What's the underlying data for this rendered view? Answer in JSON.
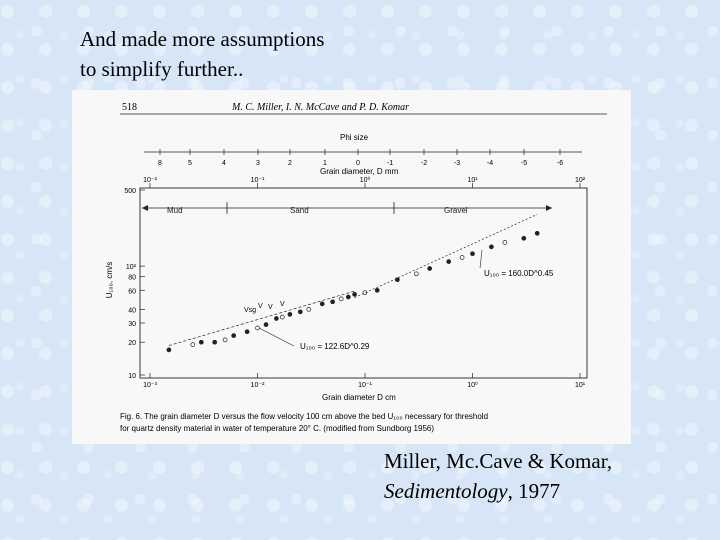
{
  "slide": {
    "title_line1": "And made more assumptions",
    "title_line2": "to simplify further..",
    "citation_line1": "Miller, Mc.Cave & Komar,",
    "citation_journal": "Sedimentology",
    "citation_year": ", 1977"
  },
  "figure": {
    "page_number": "518",
    "running_head": "M. C. Miller, I. N. McCave and P. D. Komar",
    "phi_axis_title": "Phi size",
    "phi_ticks": [
      "8",
      "5",
      "4",
      "3",
      "2",
      "1",
      "0",
      "-1",
      "-2",
      "-3",
      "-4",
      "-5",
      "-6"
    ],
    "top_axis_title": "Grain diameter, D mm",
    "top_ticks": [
      "10⁻²",
      "10⁻¹",
      "10⁰",
      "10¹",
      "10²"
    ],
    "y_label": "U₁₀₀, cm/s",
    "y_ticks": [
      "500",
      "10²",
      "80",
      "60",
      "40",
      "30",
      "20",
      "10"
    ],
    "size_classes": [
      "Mud",
      "Sand",
      "Gravel"
    ],
    "eq_fine": "U₁₀₀ = 122.6D^0.29",
    "eq_coarse": "U₁₀₀ = 160.0D^0.45",
    "point_labels": [
      "Vsg",
      "V",
      "V",
      "V"
    ],
    "bottom_axis_title": "Grain diameter D cm",
    "bottom_ticks": [
      "10⁻³",
      "10⁻²",
      "10⁻¹",
      "10⁰",
      "10¹"
    ],
    "caption_line1": "Fig. 6. The grain diameter D versus the flow velocity 100 cm above the bed U₁₀₀ necessary for threshold",
    "caption_line2": "for quartz density material in water of temperature 20° C. (modified from Sundborg 1956)"
  },
  "chart_data": {
    "type": "scatter",
    "title": "",
    "xlabel": "Grain diameter D cm",
    "ylabel": "U₁₀₀, cm/s",
    "xscale": "log",
    "yscale": "log",
    "xlim": [
      0.001,
      10
    ],
    "ylim": [
      10,
      500
    ],
    "series": [
      {
        "name": "",
        "x": [
          0.0015,
          0.0025,
          0.003,
          0.004,
          0.005,
          0.006,
          0.008,
          0.01,
          0.012,
          0.015,
          0.017,
          0.02,
          0.025,
          0.03,
          0.04,
          0.05,
          0.06,
          0.07,
          0.08,
          0.1,
          0.13,
          0.2,
          0.3,
          0.4,
          0.6,
          0.8,
          1.0,
          1.5,
          2.0,
          3.0,
          4.0
        ],
        "y": [
          17,
          19,
          20,
          20,
          21,
          23,
          25,
          27,
          29,
          33,
          34,
          36,
          38,
          40,
          45,
          47,
          50,
          52,
          55,
          57,
          60,
          75,
          85,
          95,
          110,
          120,
          130,
          150,
          165,
          180,
          200
        ]
      }
    ],
    "fit_lines": [
      {
        "label": "U₁₀₀ = 122.6D^0.29",
        "coef": 122.6,
        "exponent": 0.29,
        "range": [
          0.0015,
          0.08
        ]
      },
      {
        "label": "U₁₀₀ = 160.0D^0.45",
        "coef": 160.0,
        "exponent": 0.45,
        "range": [
          0.08,
          4.0
        ]
      }
    ],
    "grid": false
  }
}
